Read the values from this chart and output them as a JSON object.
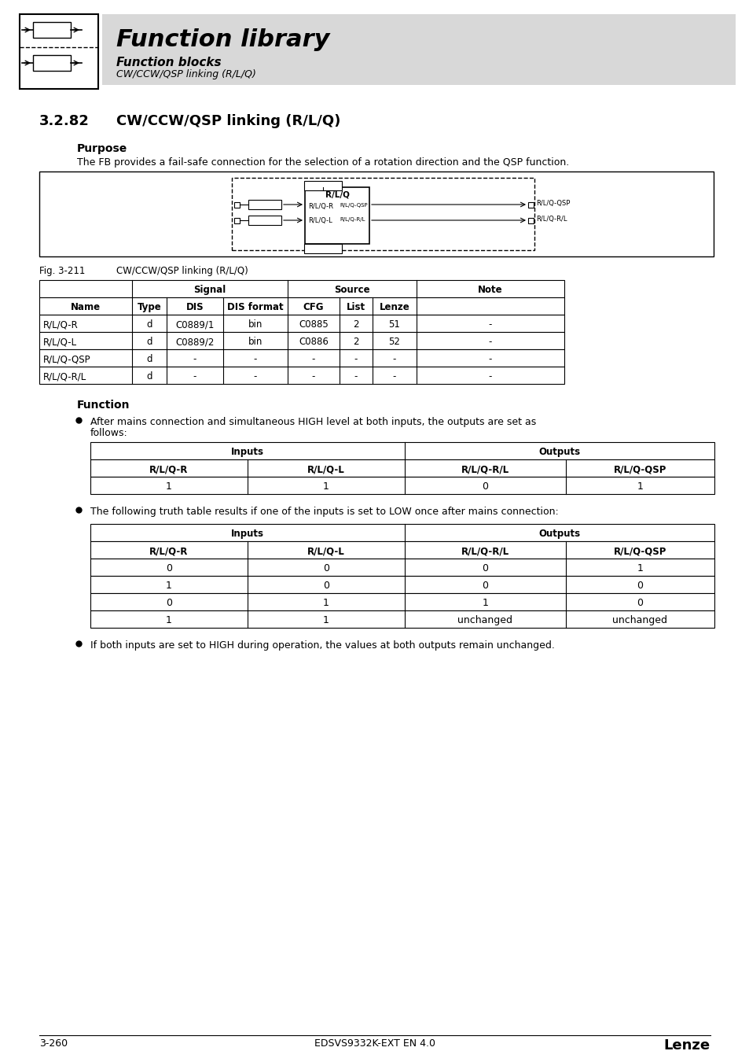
{
  "header_title": "Function library",
  "header_sub1": "Function blocks",
  "header_sub2": "CW/CCW/QSP linking (R/L/Q)",
  "section_number": "3.2.82",
  "section_title": "CW/CCW/QSP linking (R/L/Q)",
  "purpose_heading": "Purpose",
  "purpose_text": "The FB provides a fail-safe connection for the selection of a rotation direction and the QSP function.",
  "fig_label": "Fig. 3-211",
  "fig_caption": "CW/CCW/QSP linking (R/L/Q)",
  "signal_table_rows": [
    [
      "R/L/Q-R",
      "d",
      "C0889/1",
      "bin",
      "C0885",
      "2",
      "51",
      "-"
    ],
    [
      "R/L/Q-L",
      "d",
      "C0889/2",
      "bin",
      "C0886",
      "2",
      "52",
      "-"
    ],
    [
      "R/L/Q-QSP",
      "d",
      "-",
      "-",
      "-",
      "-",
      "-",
      "-"
    ],
    [
      "R/L/Q-R/L",
      "d",
      "-",
      "-",
      "-",
      "-",
      "-",
      "-"
    ]
  ],
  "function_heading": "Function",
  "table1_col_headers": [
    "R/L/Q-R",
    "R/L/Q-L",
    "R/L/Q-R/L",
    "R/L/Q-QSP"
  ],
  "table1_data": [
    [
      "1",
      "1",
      "0",
      "1"
    ]
  ],
  "table2_col_headers": [
    "R/L/Q-R",
    "R/L/Q-L",
    "R/L/Q-R/L",
    "R/L/Q-QSP"
  ],
  "table2_data": [
    [
      "0",
      "0",
      "0",
      "1"
    ],
    [
      "1",
      "0",
      "0",
      "0"
    ],
    [
      "0",
      "1",
      "1",
      "0"
    ],
    [
      "1",
      "1",
      "unchanged",
      "unchanged"
    ]
  ],
  "bullet3": "If both inputs are set to HIGH during operation, the values at both outputs remain unchanged.",
  "footer_left": "3-260",
  "footer_center": "EDSVS9332K-EXT EN 4.0",
  "footer_right": "Lenze",
  "bg_color": "#ffffff",
  "header_bg": "#d8d8d8",
  "text_color": "#000000"
}
